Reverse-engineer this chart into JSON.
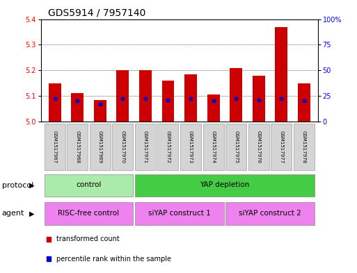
{
  "title": "GDS5914 / 7957140",
  "samples": [
    "GSM1517967",
    "GSM1517968",
    "GSM1517969",
    "GSM1517970",
    "GSM1517971",
    "GSM1517972",
    "GSM1517973",
    "GSM1517974",
    "GSM1517975",
    "GSM1517976",
    "GSM1517977",
    "GSM1517978"
  ],
  "bar_values": [
    5.15,
    5.11,
    5.085,
    5.2,
    5.2,
    5.16,
    5.185,
    5.105,
    5.21,
    5.18,
    5.37,
    5.15
  ],
  "percentile_values": [
    22,
    20,
    17,
    22,
    22,
    21,
    22,
    20,
    22,
    21,
    22,
    20
  ],
  "ylim_left": [
    5.0,
    5.4
  ],
  "ylim_right": [
    0,
    100
  ],
  "yticks_left": [
    5.0,
    5.1,
    5.2,
    5.3,
    5.4
  ],
  "yticks_right": [
    0,
    25,
    50,
    75,
    100
  ],
  "bar_color": "#cc0000",
  "percentile_color": "#0000cc",
  "bar_width": 0.55,
  "protocol_groups": [
    {
      "label": "control",
      "start": 0,
      "end": 3,
      "color": "#aaeaaa"
    },
    {
      "label": "YAP depletion",
      "start": 4,
      "end": 11,
      "color": "#44cc44"
    }
  ],
  "agent_ranges": [
    [
      0,
      3
    ],
    [
      4,
      7
    ],
    [
      8,
      11
    ]
  ],
  "agent_labels": [
    "RISC-free control",
    "siYAP construct 1",
    "siYAP construct 2"
  ],
  "agent_color": "#ee82ee",
  "legend_items": [
    {
      "label": "transformed count",
      "color": "#cc0000"
    },
    {
      "label": "percentile rank within the sample",
      "color": "#0000cc"
    }
  ],
  "protocol_label": "protocol",
  "agent_label": "agent",
  "title_fontsize": 10,
  "tick_fontsize": 7,
  "sample_fontsize": 5,
  "row_fontsize": 7.5,
  "legend_fontsize": 7
}
